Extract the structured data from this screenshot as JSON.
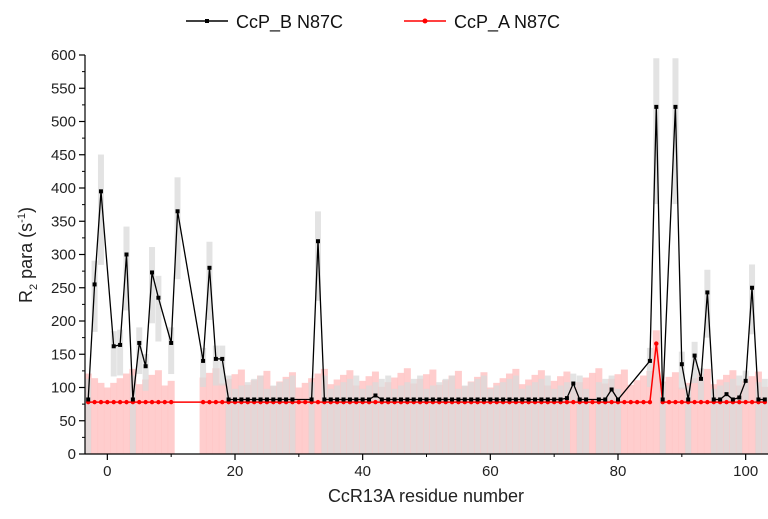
{
  "chart_data": {
    "type": "line",
    "title": "",
    "xlabel": "CcR13A residue number",
    "ylabel": {
      "main": "R",
      "sub": "2",
      "rest": " para (s",
      "sup": "-1",
      "close": ")"
    },
    "xlim": [
      -3.5,
      103.5
    ],
    "ylim": [
      0,
      600
    ],
    "xticks": [
      0,
      20,
      40,
      60,
      80,
      100
    ],
    "yticks": [
      0,
      50,
      100,
      150,
      200,
      250,
      300,
      350,
      400,
      450,
      500,
      550,
      600
    ],
    "legend_position": "top",
    "colors": {
      "series_b": "#000000",
      "series_a": "#ff0000",
      "error_b": "#d9d9d9",
      "error_a": "#ffc4c4"
    },
    "series": [
      {
        "name": "CcP_B N87C",
        "points": [
          [
            -3,
            82
          ],
          [
            -2,
            255
          ],
          [
            -1,
            395
          ],
          [
            1,
            162
          ],
          [
            2,
            164
          ],
          [
            3,
            300
          ],
          [
            4,
            82
          ],
          [
            5,
            167
          ],
          [
            6,
            132
          ],
          [
            7,
            273
          ],
          [
            8,
            235
          ],
          [
            10,
            167
          ],
          [
            11,
            365
          ],
          [
            15,
            140
          ],
          [
            16,
            280
          ],
          [
            17,
            143
          ],
          [
            18,
            143
          ],
          [
            19,
            82
          ],
          [
            20,
            82
          ],
          [
            21,
            82
          ],
          [
            22,
            82
          ],
          [
            23,
            82
          ],
          [
            24,
            82
          ],
          [
            25,
            82
          ],
          [
            26,
            82
          ],
          [
            27,
            82
          ],
          [
            28,
            82
          ],
          [
            29,
            82
          ],
          [
            32,
            82
          ],
          [
            33,
            320
          ],
          [
            34,
            82
          ],
          [
            35,
            82
          ],
          [
            36,
            82
          ],
          [
            37,
            82
          ],
          [
            38,
            82
          ],
          [
            39,
            82
          ],
          [
            40,
            82
          ],
          [
            41,
            82
          ],
          [
            42,
            88
          ],
          [
            43,
            82
          ],
          [
            44,
            82
          ],
          [
            45,
            82
          ],
          [
            46,
            82
          ],
          [
            47,
            82
          ],
          [
            48,
            82
          ],
          [
            49,
            82
          ],
          [
            50,
            82
          ],
          [
            51,
            82
          ],
          [
            52,
            82
          ],
          [
            53,
            82
          ],
          [
            54,
            82
          ],
          [
            55,
            82
          ],
          [
            56,
            82
          ],
          [
            57,
            82
          ],
          [
            58,
            82
          ],
          [
            59,
            82
          ],
          [
            60,
            82
          ],
          [
            61,
            82
          ],
          [
            62,
            82
          ],
          [
            63,
            82
          ],
          [
            64,
            82
          ],
          [
            65,
            82
          ],
          [
            66,
            82
          ],
          [
            67,
            82
          ],
          [
            68,
            82
          ],
          [
            69,
            82
          ],
          [
            70,
            82
          ],
          [
            71,
            82
          ],
          [
            72,
            84
          ],
          [
            73,
            106
          ],
          [
            74,
            82
          ],
          [
            75,
            82
          ],
          [
            77,
            82
          ],
          [
            78,
            82
          ],
          [
            79,
            97
          ],
          [
            80,
            82
          ],
          [
            85,
            140
          ],
          [
            86,
            522
          ],
          [
            87,
            82
          ],
          [
            89,
            522
          ],
          [
            90,
            135
          ],
          [
            91,
            82
          ],
          [
            92,
            148
          ],
          [
            93,
            113
          ],
          [
            94,
            243
          ],
          [
            95,
            82
          ],
          [
            96,
            82
          ],
          [
            97,
            90
          ],
          [
            98,
            82
          ],
          [
            99,
            85
          ],
          [
            100,
            110
          ],
          [
            101,
            250
          ],
          [
            102,
            82
          ],
          [
            103,
            82
          ]
        ]
      },
      {
        "name": "CcP_A N87C",
        "points": [
          [
            -3,
            78
          ],
          [
            -2,
            78
          ],
          [
            -1,
            78
          ],
          [
            0,
            78
          ],
          [
            1,
            78
          ],
          [
            2,
            78
          ],
          [
            3,
            78
          ],
          [
            4,
            78
          ],
          [
            5,
            78
          ],
          [
            6,
            78
          ],
          [
            7,
            78
          ],
          [
            8,
            78
          ],
          [
            9,
            78
          ],
          [
            10,
            78
          ],
          [
            15,
            78
          ],
          [
            16,
            78
          ],
          [
            17,
            78
          ],
          [
            18,
            78
          ],
          [
            19,
            78
          ],
          [
            20,
            78
          ],
          [
            21,
            78
          ],
          [
            22,
            78
          ],
          [
            23,
            78
          ],
          [
            24,
            78
          ],
          [
            25,
            78
          ],
          [
            26,
            78
          ],
          [
            27,
            78
          ],
          [
            28,
            78
          ],
          [
            29,
            78
          ],
          [
            30,
            78
          ],
          [
            31,
            78
          ],
          [
            32,
            78
          ],
          [
            33,
            78
          ],
          [
            34,
            78
          ],
          [
            35,
            78
          ],
          [
            36,
            78
          ],
          [
            37,
            78
          ],
          [
            38,
            78
          ],
          [
            39,
            78
          ],
          [
            40,
            78
          ],
          [
            41,
            78
          ],
          [
            42,
            78
          ],
          [
            43,
            78
          ],
          [
            44,
            78
          ],
          [
            45,
            78
          ],
          [
            46,
            78
          ],
          [
            47,
            78
          ],
          [
            48,
            78
          ],
          [
            49,
            78
          ],
          [
            50,
            78
          ],
          [
            51,
            78
          ],
          [
            52,
            78
          ],
          [
            53,
            78
          ],
          [
            54,
            78
          ],
          [
            55,
            78
          ],
          [
            56,
            78
          ],
          [
            57,
            78
          ],
          [
            58,
            78
          ],
          [
            59,
            78
          ],
          [
            60,
            78
          ],
          [
            61,
            78
          ],
          [
            62,
            78
          ],
          [
            63,
            78
          ],
          [
            64,
            78
          ],
          [
            65,
            78
          ],
          [
            66,
            78
          ],
          [
            67,
            78
          ],
          [
            68,
            78
          ],
          [
            69,
            78
          ],
          [
            70,
            78
          ],
          [
            71,
            78
          ],
          [
            72,
            78
          ],
          [
            73,
            78
          ],
          [
            74,
            78
          ],
          [
            75,
            78
          ],
          [
            76,
            78
          ],
          [
            77,
            78
          ],
          [
            78,
            78
          ],
          [
            79,
            78
          ],
          [
            80,
            78
          ],
          [
            81,
            78
          ],
          [
            82,
            78
          ],
          [
            83,
            78
          ],
          [
            84,
            78
          ],
          [
            85,
            78
          ],
          [
            86,
            166
          ],
          [
            87,
            78
          ],
          [
            88,
            78
          ],
          [
            89,
            78
          ],
          [
            90,
            78
          ],
          [
            91,
            78
          ],
          [
            92,
            78
          ],
          [
            93,
            78
          ],
          [
            94,
            78
          ],
          [
            95,
            78
          ],
          [
            96,
            78
          ],
          [
            97,
            78
          ],
          [
            98,
            78
          ],
          [
            99,
            78
          ],
          [
            100,
            78
          ],
          [
            101,
            78
          ],
          [
            102,
            78
          ],
          [
            103,
            78
          ]
        ]
      }
    ]
  }
}
